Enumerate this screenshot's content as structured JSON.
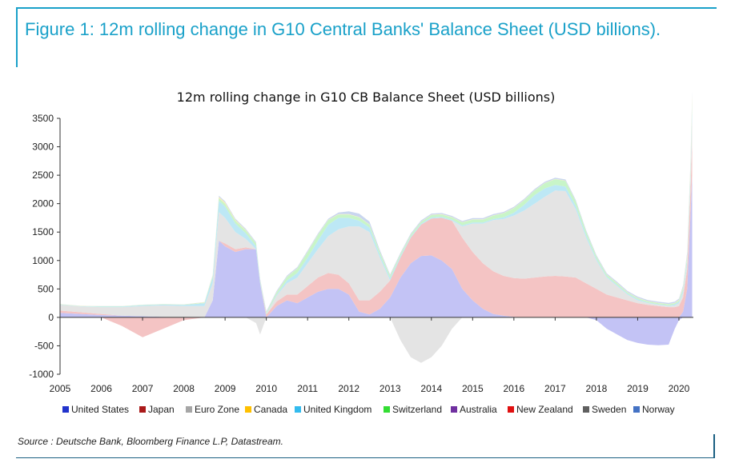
{
  "figure": {
    "title": "Figure 1: 12m rolling change in G10 Central Banks' Balance Sheet (USD billions).",
    "source": "Source : Deutsche Bank, Bloomberg Finance L.P, Datastream."
  },
  "chart_data": {
    "type": "area",
    "title": "12m rolling change in G10 CB Balance Sheet (USD billions)",
    "xlabel": "",
    "ylabel": "",
    "ylim": [
      -1000,
      3500
    ],
    "xlim": [
      2005,
      2020.35
    ],
    "yticks": [
      "3500",
      "3000",
      "2500",
      "2000",
      "1500",
      "1000",
      "500",
      "0",
      "-500",
      "-1000"
    ],
    "ytick_values": [
      3500,
      3000,
      2500,
      2000,
      1500,
      1000,
      500,
      0,
      -500,
      -1000
    ],
    "xticks": [
      "2005",
      "2006",
      "2007",
      "2008",
      "2009",
      "2010",
      "2011",
      "2012",
      "2013",
      "2014",
      "2015",
      "2016",
      "2017",
      "2018",
      "2019",
      "2020"
    ],
    "legend": [
      {
        "name": "United States",
        "color": "#2233cc"
      },
      {
        "name": "Japan",
        "color": "#aa1a1a"
      },
      {
        "name": "Euro Zone",
        "color": "#a6a6a6"
      },
      {
        "name": "Canada",
        "color": "#ffc000"
      },
      {
        "name": "United Kingdom",
        "color": "#33bbee"
      },
      {
        "name": "Switzerland",
        "color": "#33dd33"
      },
      {
        "name": "Australia",
        "color": "#7030a0"
      },
      {
        "name": "New Zealand",
        "color": "#e01010"
      },
      {
        "name": "Sweden",
        "color": "#606060"
      },
      {
        "name": "Norway",
        "color": "#4472c4"
      }
    ],
    "x": [
      2005.0,
      2005.5,
      2006.0,
      2006.5,
      2007.0,
      2007.5,
      2008.0,
      2008.5,
      2008.7,
      2008.85,
      2009.0,
      2009.25,
      2009.5,
      2009.75,
      2009.85,
      2010.0,
      2010.25,
      2010.5,
      2010.75,
      2011.0,
      2011.25,
      2011.5,
      2011.75,
      2012.0,
      2012.25,
      2012.5,
      2012.75,
      2013.0,
      2013.25,
      2013.5,
      2013.75,
      2014.0,
      2014.25,
      2014.5,
      2014.75,
      2015.0,
      2015.25,
      2015.5,
      2015.75,
      2016.0,
      2016.25,
      2016.5,
      2016.75,
      2017.0,
      2017.25,
      2017.5,
      2017.75,
      2018.0,
      2018.25,
      2018.5,
      2018.75,
      2019.0,
      2019.25,
      2019.5,
      2019.75,
      2019.9,
      2020.0,
      2020.1,
      2020.2,
      2020.28,
      2020.32
    ],
    "series": [
      {
        "name": "United States",
        "values": [
          80,
          60,
          40,
          30,
          20,
          10,
          0,
          0,
          300,
          1350,
          1250,
          1150,
          1200,
          1200,
          600,
          0,
          200,
          300,
          250,
          350,
          450,
          500,
          500,
          400,
          100,
          50,
          150,
          350,
          700,
          950,
          1080,
          1090,
          1000,
          850,
          500,
          300,
          150,
          60,
          30,
          10,
          0,
          0,
          0,
          0,
          0,
          0,
          0,
          -50,
          -200,
          -300,
          -400,
          -450,
          -480,
          -490,
          -480,
          -200,
          -50,
          100,
          500,
          1800,
          2500
        ]
      },
      {
        "name": "Japan",
        "values": [
          40,
          30,
          20,
          -150,
          -350,
          -200,
          -50,
          0,
          0,
          0,
          50,
          50,
          30,
          0,
          0,
          50,
          80,
          100,
          150,
          200,
          250,
          280,
          250,
          200,
          200,
          250,
          300,
          300,
          350,
          450,
          550,
          650,
          750,
          850,
          900,
          850,
          800,
          750,
          700,
          680,
          680,
          700,
          720,
          730,
          720,
          700,
          600,
          500,
          400,
          350,
          300,
          250,
          220,
          200,
          180,
          180,
          200,
          250,
          350,
          450,
          600
        ]
      },
      {
        "name": "Euro Zone",
        "values": [
          100,
          100,
          120,
          150,
          180,
          200,
          200,
          200,
          300,
          500,
          450,
          300,
          150,
          -100,
          -300,
          0,
          100,
          200,
          300,
          400,
          500,
          650,
          800,
          1000,
          1300,
          1200,
          600,
          0,
          -400,
          -700,
          -800,
          -700,
          -500,
          -200,
          200,
          500,
          700,
          900,
          1000,
          1100,
          1200,
          1300,
          1400,
          1500,
          1500,
          1200,
          800,
          500,
          300,
          200,
          100,
          50,
          30,
          20,
          20,
          30,
          50,
          80,
          100,
          200,
          500
        ]
      },
      {
        "name": "United Kingdom",
        "values": [
          5,
          5,
          10,
          10,
          15,
          15,
          20,
          50,
          100,
          200,
          200,
          150,
          100,
          50,
          20,
          10,
          20,
          50,
          80,
          100,
          150,
          200,
          200,
          150,
          100,
          80,
          50,
          40,
          30,
          20,
          20,
          20,
          20,
          20,
          20,
          20,
          20,
          20,
          30,
          50,
          100,
          150,
          150,
          100,
          80,
          60,
          50,
          30,
          20,
          20,
          20,
          20,
          10,
          10,
          10,
          20,
          30,
          50,
          80,
          120,
          150
        ]
      },
      {
        "name": "Switzerland",
        "values": [
          5,
          5,
          5,
          5,
          5,
          5,
          5,
          10,
          30,
          50,
          50,
          50,
          50,
          50,
          30,
          20,
          40,
          60,
          80,
          100,
          100,
          80,
          60,
          60,
          60,
          50,
          50,
          40,
          30,
          30,
          30,
          40,
          40,
          40,
          50,
          50,
          50,
          60,
          70,
          80,
          80,
          80,
          90,
          100,
          100,
          80,
          60,
          40,
          30,
          30,
          20,
          20,
          20,
          20,
          20,
          20,
          20,
          30,
          40,
          60,
          80
        ]
      },
      {
        "name": "Canada",
        "values": [
          2,
          2,
          2,
          2,
          2,
          2,
          2,
          5,
          10,
          20,
          20,
          15,
          10,
          5,
          5,
          5,
          5,
          5,
          5,
          5,
          5,
          5,
          5,
          5,
          5,
          5,
          5,
          5,
          5,
          5,
          5,
          5,
          5,
          5,
          5,
          5,
          5,
          5,
          5,
          5,
          5,
          5,
          5,
          5,
          5,
          5,
          5,
          5,
          5,
          5,
          5,
          5,
          5,
          5,
          5,
          5,
          10,
          20,
          40,
          60,
          80
        ]
      },
      {
        "name": "Norway",
        "values": [
          2,
          2,
          2,
          2,
          2,
          2,
          2,
          5,
          10,
          20,
          20,
          20,
          20,
          20,
          20,
          20,
          20,
          20,
          20,
          20,
          20,
          20,
          30,
          50,
          60,
          50,
          30,
          20,
          20,
          20,
          20,
          20,
          20,
          20,
          20,
          20,
          20,
          20,
          20,
          20,
          20,
          20,
          20,
          20,
          20,
          20,
          20,
          20,
          20,
          20,
          20,
          20,
          20,
          20,
          20,
          20,
          20,
          30,
          40,
          50,
          60
        ]
      }
    ]
  }
}
